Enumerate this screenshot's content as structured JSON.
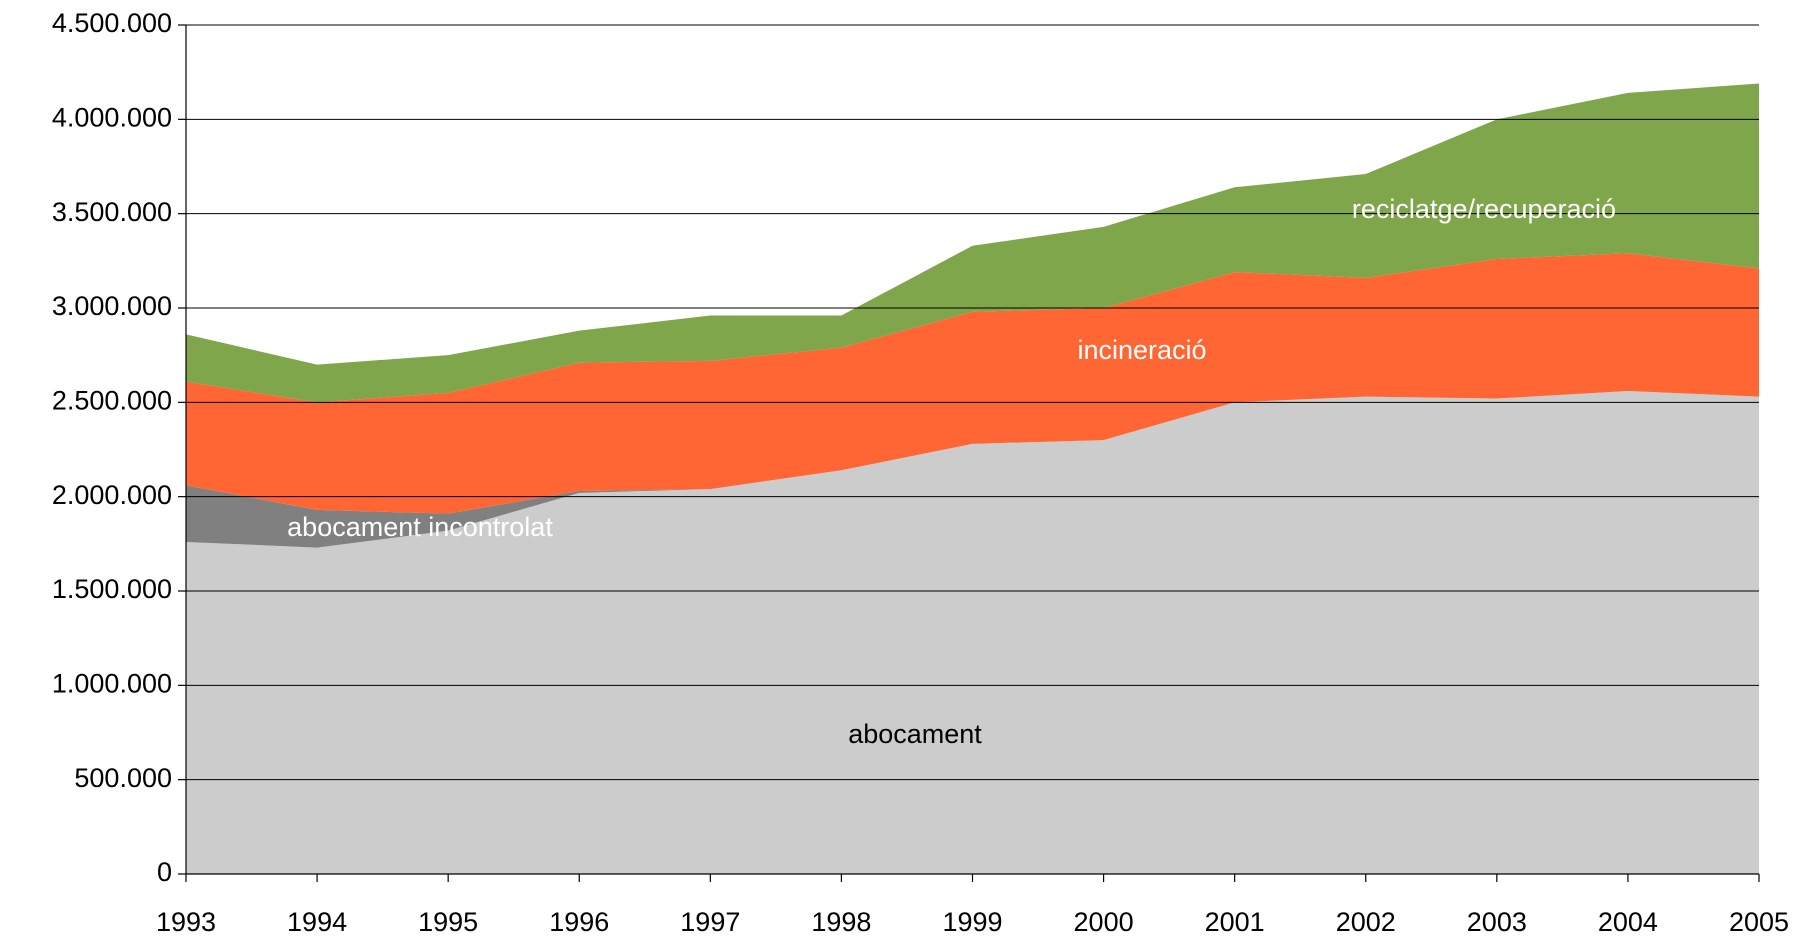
{
  "chart_data": {
    "type": "stacked_area",
    "categories": [
      "1993",
      "1994",
      "1995",
      "1996",
      "1997",
      "1998",
      "1999",
      "2000",
      "2001",
      "2002",
      "2003",
      "2004",
      "2005"
    ],
    "series": [
      {
        "name": "abocament",
        "color": "#cccccc",
        "label_color": "#000000",
        "values": [
          1760000,
          1730000,
          1820000,
          2020000,
          2040000,
          2140000,
          2280000,
          2300000,
          2500000,
          2530000,
          2520000,
          2560000,
          2530000
        ]
      },
      {
        "name": "abocament incontrolat",
        "color": "#808080",
        "label_color": "#ffffff",
        "values": [
          300000,
          200000,
          90000,
          10000,
          0,
          0,
          0,
          0,
          0,
          0,
          0,
          0,
          0
        ]
      },
      {
        "name": "incineració",
        "color": "#ff6633",
        "label_color": "#ffffff",
        "values": [
          550000,
          570000,
          640000,
          680000,
          680000,
          650000,
          700000,
          700000,
          690000,
          630000,
          740000,
          730000,
          680000
        ]
      },
      {
        "name": "reciclatge/recuperació",
        "color": "#7fa64a",
        "label_color": "#ffffff",
        "values": [
          250000,
          200000,
          200000,
          170000,
          240000,
          170000,
          350000,
          430000,
          450000,
          550000,
          740000,
          850000,
          980000
        ]
      }
    ],
    "ylim": [
      0,
      4500000
    ],
    "yticks": [
      0,
      {
        "value": 500000,
        "label": "500.000"
      },
      {
        "value": 1000000,
        "label": "1.000.000"
      },
      {
        "value": 1500000,
        "label": "1.500.000"
      },
      {
        "value": 2000000,
        "label": "2.000.000"
      },
      {
        "value": 2500000,
        "label": "2.500.000"
      },
      {
        "value": 3000000,
        "label": "3.000.000"
      },
      {
        "value": 3500000,
        "label": "3.500.000"
      },
      {
        "value": 4000000,
        "label": "4.000.000"
      },
      {
        "value": 4500000,
        "label": "4.500.000"
      }
    ],
    "grid": true
  }
}
